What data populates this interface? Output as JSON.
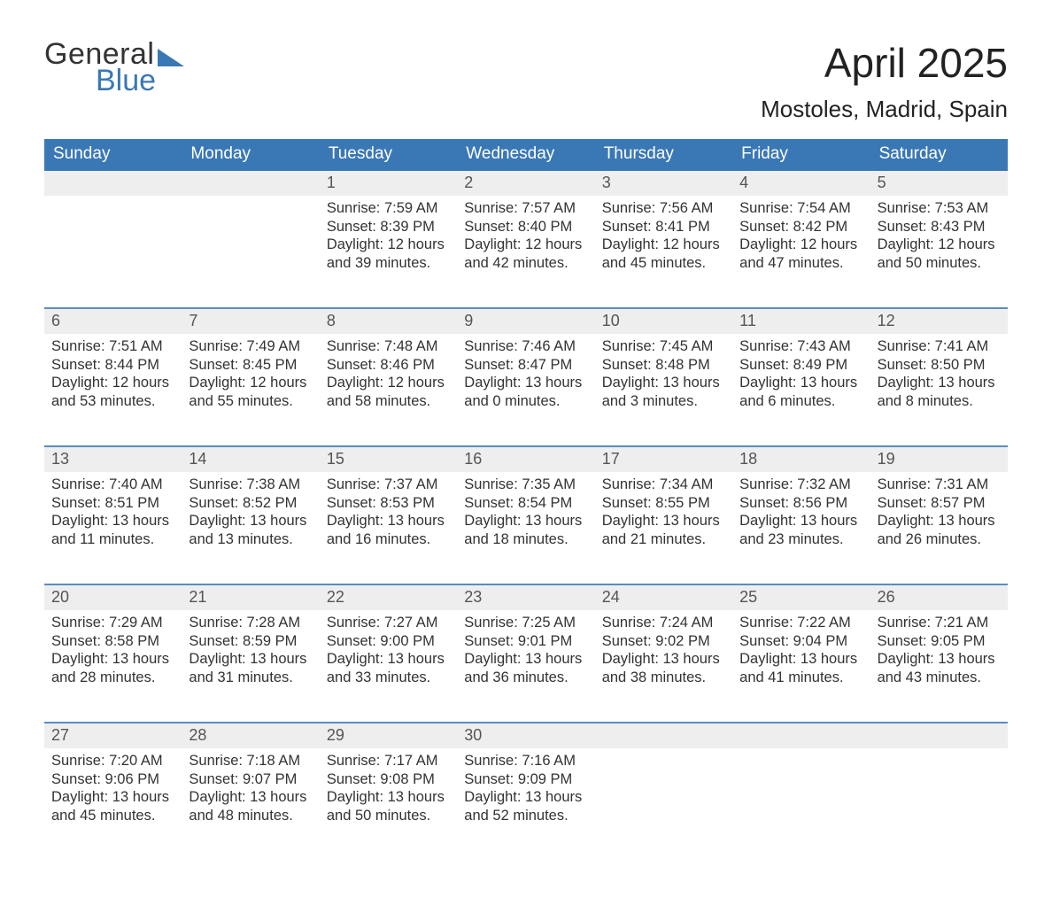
{
  "logo": {
    "word1": "General",
    "word2": "Blue",
    "word1_color": "#333333",
    "word2_color": "#3a78b5"
  },
  "title": "April 2025",
  "subtitle": "Mostoles, Madrid, Spain",
  "colors": {
    "header_bg": "#3a78b5",
    "header_text": "#ffffff",
    "daynum_bg": "#eeeeee",
    "week_border": "#5a8cbf",
    "body_text": "#333333"
  },
  "labels": {
    "sunrise": "Sunrise:",
    "sunset": "Sunset:",
    "daylight": "Daylight:",
    "hours": "hours",
    "and": "and",
    "minutes": "minutes."
  },
  "day_headers": [
    "Sunday",
    "Monday",
    "Tuesday",
    "Wednesday",
    "Thursday",
    "Friday",
    "Saturday"
  ],
  "weeks": [
    [
      null,
      null,
      {
        "n": 1,
        "sunrise": "7:59 AM",
        "sunset": "8:39 PM",
        "dh": 12,
        "dm": 39
      },
      {
        "n": 2,
        "sunrise": "7:57 AM",
        "sunset": "8:40 PM",
        "dh": 12,
        "dm": 42
      },
      {
        "n": 3,
        "sunrise": "7:56 AM",
        "sunset": "8:41 PM",
        "dh": 12,
        "dm": 45
      },
      {
        "n": 4,
        "sunrise": "7:54 AM",
        "sunset": "8:42 PM",
        "dh": 12,
        "dm": 47
      },
      {
        "n": 5,
        "sunrise": "7:53 AM",
        "sunset": "8:43 PM",
        "dh": 12,
        "dm": 50
      }
    ],
    [
      {
        "n": 6,
        "sunrise": "7:51 AM",
        "sunset": "8:44 PM",
        "dh": 12,
        "dm": 53
      },
      {
        "n": 7,
        "sunrise": "7:49 AM",
        "sunset": "8:45 PM",
        "dh": 12,
        "dm": 55
      },
      {
        "n": 8,
        "sunrise": "7:48 AM",
        "sunset": "8:46 PM",
        "dh": 12,
        "dm": 58
      },
      {
        "n": 9,
        "sunrise": "7:46 AM",
        "sunset": "8:47 PM",
        "dh": 13,
        "dm": 0
      },
      {
        "n": 10,
        "sunrise": "7:45 AM",
        "sunset": "8:48 PM",
        "dh": 13,
        "dm": 3
      },
      {
        "n": 11,
        "sunrise": "7:43 AM",
        "sunset": "8:49 PM",
        "dh": 13,
        "dm": 6
      },
      {
        "n": 12,
        "sunrise": "7:41 AM",
        "sunset": "8:50 PM",
        "dh": 13,
        "dm": 8
      }
    ],
    [
      {
        "n": 13,
        "sunrise": "7:40 AM",
        "sunset": "8:51 PM",
        "dh": 13,
        "dm": 11
      },
      {
        "n": 14,
        "sunrise": "7:38 AM",
        "sunset": "8:52 PM",
        "dh": 13,
        "dm": 13
      },
      {
        "n": 15,
        "sunrise": "7:37 AM",
        "sunset": "8:53 PM",
        "dh": 13,
        "dm": 16
      },
      {
        "n": 16,
        "sunrise": "7:35 AM",
        "sunset": "8:54 PM",
        "dh": 13,
        "dm": 18
      },
      {
        "n": 17,
        "sunrise": "7:34 AM",
        "sunset": "8:55 PM",
        "dh": 13,
        "dm": 21
      },
      {
        "n": 18,
        "sunrise": "7:32 AM",
        "sunset": "8:56 PM",
        "dh": 13,
        "dm": 23
      },
      {
        "n": 19,
        "sunrise": "7:31 AM",
        "sunset": "8:57 PM",
        "dh": 13,
        "dm": 26
      }
    ],
    [
      {
        "n": 20,
        "sunrise": "7:29 AM",
        "sunset": "8:58 PM",
        "dh": 13,
        "dm": 28
      },
      {
        "n": 21,
        "sunrise": "7:28 AM",
        "sunset": "8:59 PM",
        "dh": 13,
        "dm": 31
      },
      {
        "n": 22,
        "sunrise": "7:27 AM",
        "sunset": "9:00 PM",
        "dh": 13,
        "dm": 33
      },
      {
        "n": 23,
        "sunrise": "7:25 AM",
        "sunset": "9:01 PM",
        "dh": 13,
        "dm": 36
      },
      {
        "n": 24,
        "sunrise": "7:24 AM",
        "sunset": "9:02 PM",
        "dh": 13,
        "dm": 38
      },
      {
        "n": 25,
        "sunrise": "7:22 AM",
        "sunset": "9:04 PM",
        "dh": 13,
        "dm": 41
      },
      {
        "n": 26,
        "sunrise": "7:21 AM",
        "sunset": "9:05 PM",
        "dh": 13,
        "dm": 43
      }
    ],
    [
      {
        "n": 27,
        "sunrise": "7:20 AM",
        "sunset": "9:06 PM",
        "dh": 13,
        "dm": 45
      },
      {
        "n": 28,
        "sunrise": "7:18 AM",
        "sunset": "9:07 PM",
        "dh": 13,
        "dm": 48
      },
      {
        "n": 29,
        "sunrise": "7:17 AM",
        "sunset": "9:08 PM",
        "dh": 13,
        "dm": 50
      },
      {
        "n": 30,
        "sunrise": "7:16 AM",
        "sunset": "9:09 PM",
        "dh": 13,
        "dm": 52
      },
      null,
      null,
      null
    ]
  ]
}
